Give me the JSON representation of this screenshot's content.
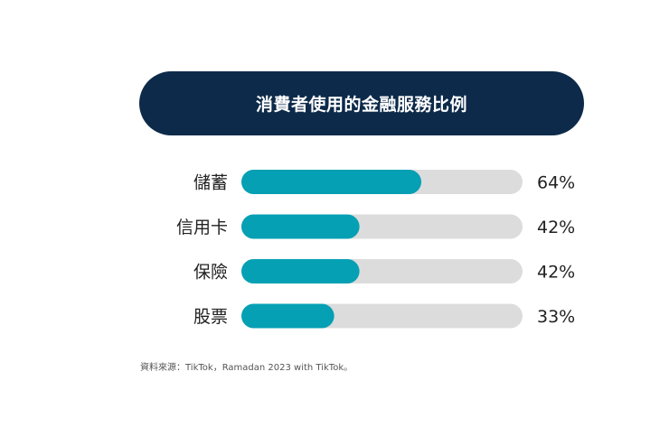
{
  "chart_data": {
    "type": "bar",
    "orientation": "horizontal",
    "title": "消費者使用的金融服務比例",
    "categories": [
      "儲蓄",
      "信用卡",
      "保險",
      "股票"
    ],
    "values": [
      64,
      42,
      42,
      33
    ],
    "value_labels": [
      "64%",
      "42%",
      "42%",
      "33%"
    ],
    "xlim": [
      0,
      100
    ],
    "grid": false,
    "legend": "none",
    "colors": {
      "bar_fill": "#05a0b4",
      "track": "#dcdcdc",
      "title_background": "#0d2a4a"
    }
  },
  "source": "資料來源：TikTok，Ramadan 2023 with TikTok。"
}
